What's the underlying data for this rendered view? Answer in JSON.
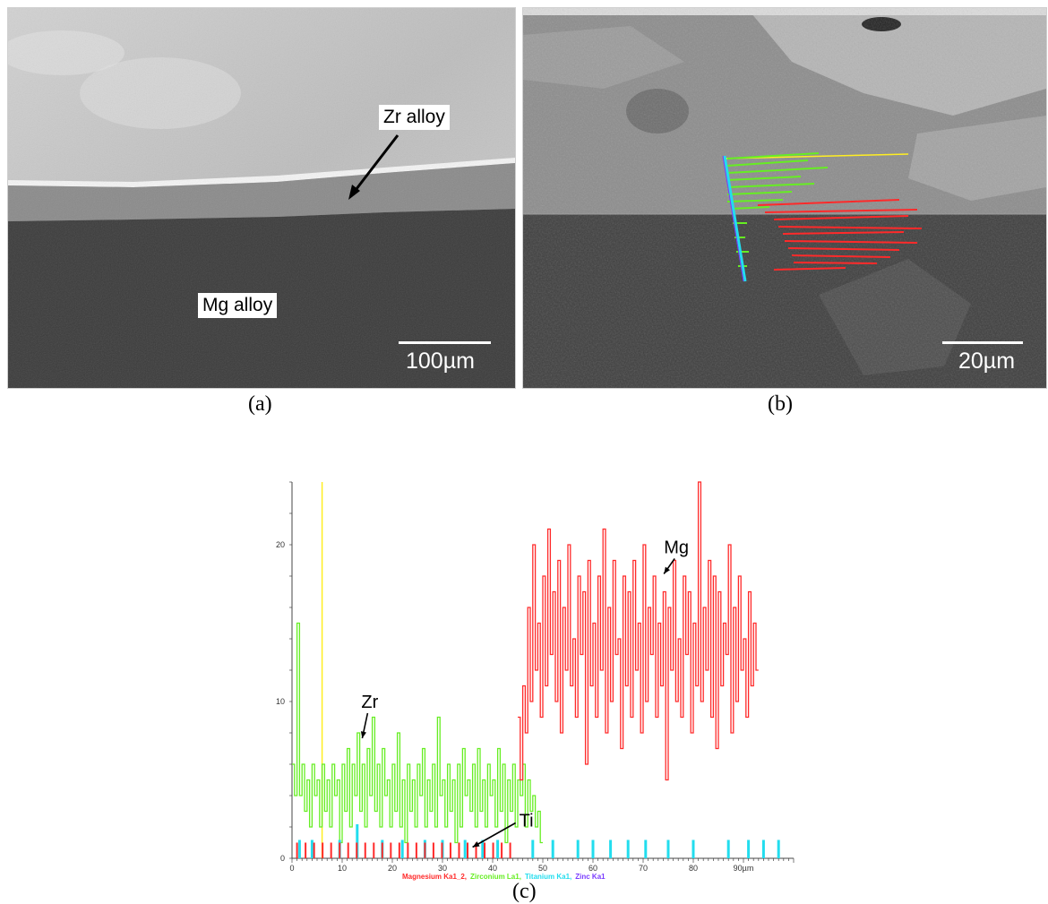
{
  "panel_a": {
    "label_zr": "Zr alloy",
    "label_mg": "Mg alloy",
    "scale": "100µm",
    "caption": "(a)"
  },
  "panel_b": {
    "scale": "20µm",
    "caption": "(b)"
  },
  "panel_c": {
    "caption": "(c)"
  },
  "colors": {
    "mg": "#ff2a2a",
    "zr": "#66ee22",
    "ti": "#22ddee",
    "zn": "#7a3cff",
    "marker": "#ffee22"
  },
  "chart_data": {
    "type": "line",
    "xlim": [
      0,
      100
    ],
    "ylim": [
      0,
      24
    ],
    "x_ticks": [
      0,
      10,
      20,
      30,
      40,
      50,
      60,
      70,
      80,
      90
    ],
    "x_tick_labels": [
      "0",
      "10",
      "20",
      "30",
      "40",
      "50",
      "60",
      "70",
      "80",
      "90µm"
    ],
    "y_ticks": [
      0,
      10,
      20
    ],
    "y_tick_labels": [
      "0",
      "10",
      "20"
    ],
    "legend": [
      "Magnesium Ka1_2",
      "Zirconium La1",
      "Titanium Ka1",
      "Zinc Ka1"
    ],
    "annotations": [
      {
        "text": "Mg",
        "x": 72,
        "y": 19
      },
      {
        "text": "Zr",
        "x": 14,
        "y": 8
      },
      {
        "text": "Ti",
        "x": 36,
        "y": 1
      }
    ],
    "marker_line_x": 6,
    "series": [
      {
        "name": "Zirconium La1",
        "x_start": 0,
        "x_step": 0.5,
        "values": [
          6,
          4,
          15,
          4,
          6,
          3,
          5,
          2,
          6,
          4,
          5,
          2,
          6,
          3,
          5,
          2,
          6,
          4,
          5,
          1,
          6,
          3,
          7,
          2,
          6,
          4,
          8,
          3,
          6,
          2,
          7,
          4,
          9,
          3,
          6,
          2,
          7,
          4,
          5,
          2,
          6,
          3,
          8,
          2,
          5,
          1,
          6,
          3,
          5,
          2,
          6,
          4,
          7,
          2,
          5,
          3,
          6,
          2,
          9,
          4,
          5,
          2,
          6,
          3,
          5,
          1,
          6,
          2,
          7,
          4,
          5,
          3,
          6,
          2,
          7,
          3,
          5,
          2,
          6,
          4,
          5,
          2,
          7,
          3,
          6,
          1,
          5,
          3,
          6,
          2,
          5,
          4,
          6,
          2,
          5,
          3,
          4,
          2,
          3,
          1
        ]
      },
      {
        "name": "Magnesium Ka1_2",
        "x_start": 45,
        "x_step": 0.5,
        "values": [
          9,
          5,
          11,
          8,
          16,
          10,
          20,
          12,
          15,
          9,
          18,
          11,
          21,
          13,
          17,
          10,
          19,
          8,
          16,
          12,
          20,
          11,
          14,
          9,
          18,
          13,
          17,
          6,
          19,
          11,
          15,
          9,
          18,
          12,
          21,
          8,
          16,
          10,
          19,
          13,
          14,
          7,
          18,
          11,
          17,
          9,
          19,
          12,
          15,
          8,
          20,
          10,
          16,
          13,
          18,
          9,
          15,
          11,
          17,
          5,
          16,
          12,
          19,
          10,
          14,
          9,
          18,
          13,
          17,
          8,
          15,
          11,
          24,
          10,
          16,
          12,
          19,
          9,
          18,
          7,
          17,
          11,
          15,
          13,
          20,
          8,
          16,
          10,
          18,
          12,
          14,
          9,
          17,
          11,
          15,
          12
        ]
      },
      {
        "name": "Titanium Ka1",
        "x": [
          1.5,
          4,
          9.5,
          13,
          18,
          22,
          26.5,
          30,
          34.5,
          38,
          41,
          48,
          52,
          57,
          60,
          63.5,
          67,
          70.5,
          75,
          80,
          87,
          91,
          94,
          97
        ],
        "values": [
          1,
          1,
          1,
          2,
          1,
          1,
          1,
          1,
          1,
          1,
          1,
          1,
          1,
          1,
          1,
          1,
          1,
          1,
          1,
          1,
          1,
          1,
          1,
          1
        ]
      }
    ]
  }
}
